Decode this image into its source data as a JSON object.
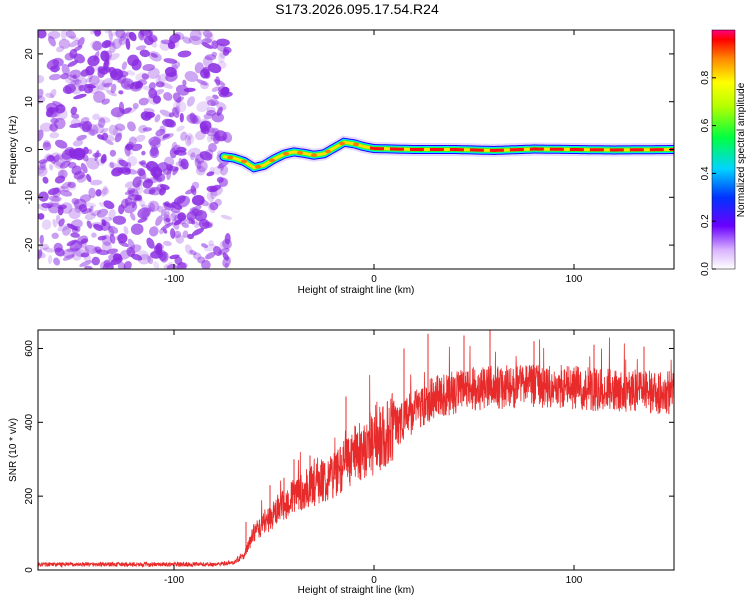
{
  "title": "S173.2026.095.17.54.R24",
  "colors": {
    "snr_line": "#e82a2a",
    "noise": "#8a2be2",
    "axis": "#000000"
  },
  "chart_data": [
    {
      "name": "spectrogram",
      "type": "heatmap",
      "xlabel": "Height of straight line (km)",
      "ylabel": "Frequency (Hz)",
      "xlim": [
        -168,
        150
      ],
      "ylim": [
        -25,
        25
      ],
      "x_ticks": [
        -100,
        0,
        100
      ],
      "x_tick_labels": [
        "-100",
        "0",
        "100"
      ],
      "y_ticks": [
        -20,
        -10,
        0,
        10,
        20
      ],
      "y_tick_labels": [
        "-20",
        "-10",
        "0",
        "10",
        "20"
      ],
      "noise_region_x": [
        -168,
        -75
      ],
      "tone_track": {
        "x": [
          -75,
          -70,
          -65,
          -60,
          -55,
          -50,
          -45,
          -40,
          -35,
          -30,
          -25,
          -20,
          -15,
          -10,
          -5,
          0,
          20,
          40,
          60,
          80,
          100,
          120,
          150
        ],
        "freq": [
          -1.5,
          -1.8,
          -2.5,
          -3.8,
          -3.3,
          -2.0,
          -1.0,
          -0.5,
          -0.8,
          -1.2,
          -0.9,
          0.3,
          1.5,
          1.2,
          0.6,
          0.2,
          0.0,
          0.0,
          -0.2,
          0.1,
          0.0,
          -0.1,
          0.0
        ]
      },
      "colorbar": {
        "label": "Normalized spectral amplitude",
        "range": [
          0.0,
          1.0
        ],
        "ticks": [
          0.0,
          0.2,
          0.4,
          0.6,
          0.8
        ],
        "tick_labels": [
          "0.0",
          "0.2",
          "0.4",
          "0.6",
          "0.8"
        ]
      }
    },
    {
      "name": "snr",
      "type": "line",
      "xlabel": "Height of straight line (km)",
      "ylabel": "SNR (10 * v/v)",
      "xlim": [
        -168,
        150
      ],
      "ylim": [
        0,
        650
      ],
      "x_ticks": [
        -100,
        0,
        100
      ],
      "x_tick_labels": [
        "-100",
        "0",
        "100"
      ],
      "y_ticks": [
        0,
        200,
        400,
        600
      ],
      "y_tick_labels": [
        "0",
        "200",
        "400",
        "600"
      ],
      "trend": {
        "x": [
          -168,
          -80,
          -70,
          -65,
          -60,
          -50,
          -40,
          -30,
          -20,
          -10,
          0,
          10,
          20,
          30,
          50,
          80,
          100,
          120,
          150
        ],
        "y": [
          15,
          15,
          20,
          40,
          100,
          150,
          200,
          230,
          260,
          310,
          340,
          390,
          430,
          470,
          490,
          500,
          495,
          485,
          480
        ]
      },
      "spikes": [
        {
          "x": -64,
          "y": 130
        },
        {
          "x": -52,
          "y": 230
        },
        {
          "x": -45,
          "y": 250
        },
        {
          "x": -40,
          "y": 300
        },
        {
          "x": -32,
          "y": 310
        },
        {
          "x": -14,
          "y": 470
        },
        {
          "x": 15,
          "y": 600
        },
        {
          "x": 27,
          "y": 640
        },
        {
          "x": 45,
          "y": 635
        },
        {
          "x": 58,
          "y": 650
        },
        {
          "x": 80,
          "y": 620
        },
        {
          "x": 110,
          "y": 610
        },
        {
          "x": 135,
          "y": 605
        }
      ]
    }
  ]
}
